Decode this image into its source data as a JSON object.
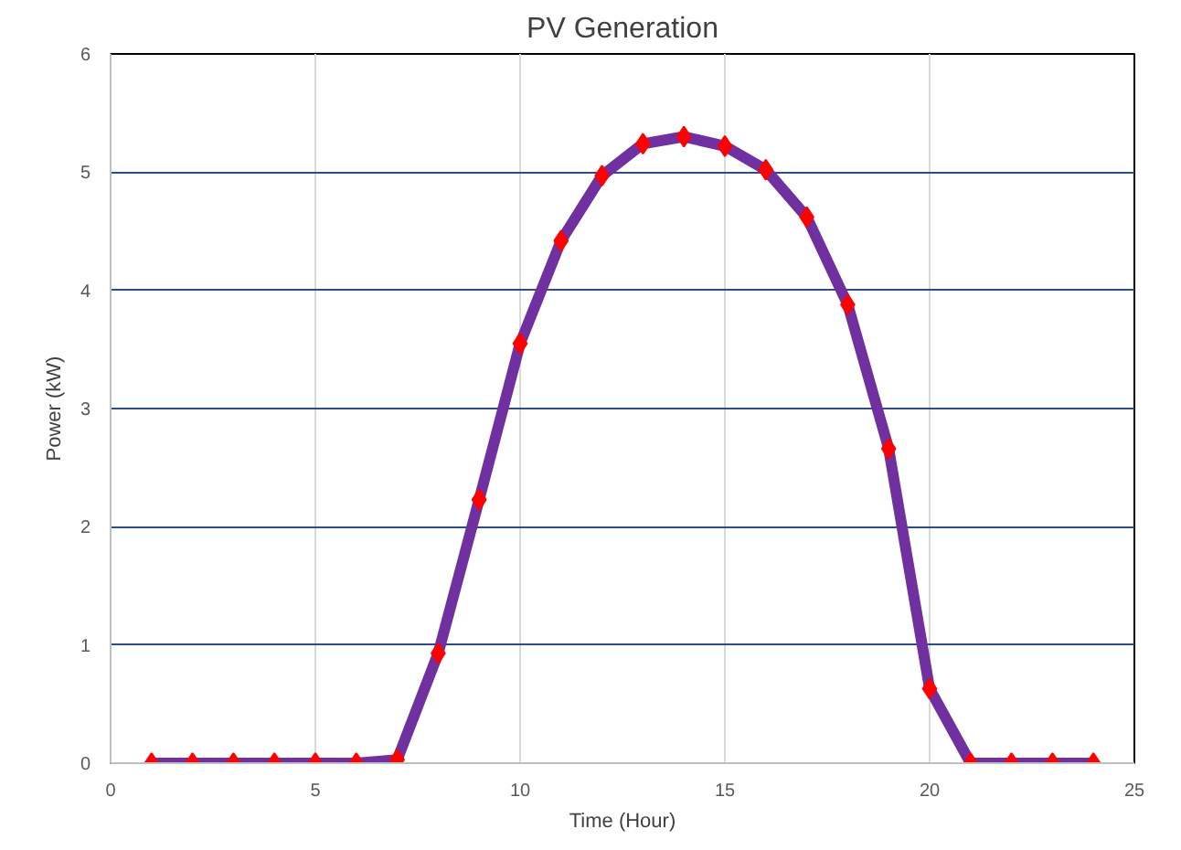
{
  "chart_data": {
    "type": "line",
    "title": "PV Generation",
    "xlabel": "Time (Hour)",
    "ylabel": "Power (kW)",
    "x": [
      1,
      2,
      3,
      4,
      5,
      6,
      7,
      8,
      9,
      10,
      11,
      12,
      13,
      14,
      15,
      16,
      17,
      18,
      19,
      20,
      21,
      22,
      23,
      24
    ],
    "series": [
      {
        "color": "#7030a0",
        "colors": [
          "#ff0000",
          "#ff0000",
          "#ff0000",
          "#ff0000",
          "#ff0000",
          "#ff0000",
          "#ff0000",
          "#ff0000",
          "#ff0000",
          "#ff0000",
          "#ff0000",
          "#ff0000",
          "#ff0000",
          "#ff0000",
          "#ff0000",
          "#ff0000",
          "#ff0000",
          "#ff0000",
          "#ff0000",
          "#ff0000",
          "#ff0000",
          "#ff0000",
          "#ff0000",
          "#ff0000"
        ],
        "values": [
          0,
          0,
          0,
          0,
          0,
          0,
          0.03,
          0.93,
          2.23,
          3.55,
          4.42,
          4.97,
          5.24,
          5.3,
          5.22,
          5.02,
          4.62,
          3.88,
          2.66,
          0.63,
          0,
          0,
          0,
          0
        ]
      }
    ],
    "xlim": [
      0,
      25
    ],
    "xticks": [
      0,
      5,
      10,
      15,
      20,
      25
    ],
    "ylim": [
      0,
      6
    ],
    "yticks": [
      0,
      1,
      2,
      3,
      4,
      5,
      6
    ],
    "grid": true,
    "marker": "diamond",
    "line_style": "solid"
  }
}
